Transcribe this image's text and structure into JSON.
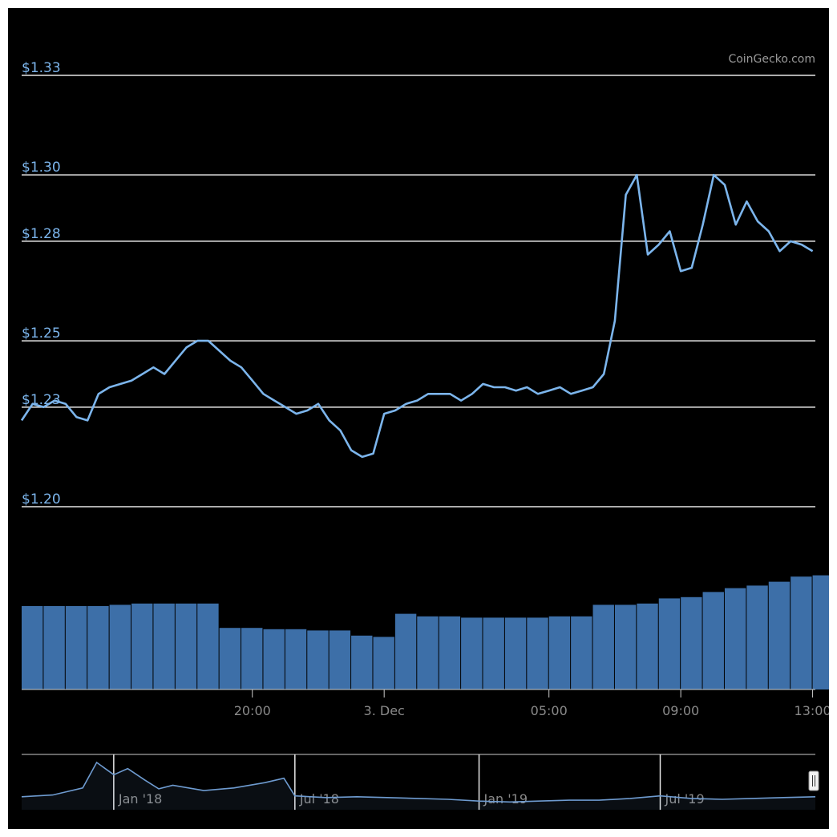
{
  "credit": "CoinGecko.com",
  "colors": {
    "background": "#000000",
    "line": "#7cb5ec",
    "bar": "#3d6fa8",
    "grid": "#e6e6e6",
    "tick_text": "#8a8a8a",
    "navigator_line": "#6e9bd0"
  },
  "chart_data": {
    "type": "line",
    "y_axis": {
      "ticks": [
        1.2,
        1.23,
        1.25,
        1.28,
        1.3,
        1.33
      ],
      "tick_labels": [
        "$1.20",
        "$1.23",
        "$1.25",
        "$1.28",
        "$1.30",
        "$1.33"
      ],
      "range": [
        1.2,
        1.33
      ],
      "gridlines": true
    },
    "x_axis": {
      "tick_labels": [
        "20:00",
        "3. Dec",
        "05:00",
        "09:00",
        "13:00"
      ],
      "tick_times": [
        "2019-12-02T20:00",
        "2019-12-03T00:00",
        "2019-12-03T05:00",
        "2019-12-03T09:00",
        "2019-12-03T13:00"
      ],
      "range": [
        "2019-12-02T13:00",
        "2019-12-03T13:05"
      ]
    },
    "price_series": {
      "times": [
        "2019-12-02T13:00",
        "2019-12-02T13:20",
        "2019-12-02T13:40",
        "2019-12-02T14:00",
        "2019-12-02T14:20",
        "2019-12-02T14:40",
        "2019-12-02T15:00",
        "2019-12-02T15:20",
        "2019-12-02T15:40",
        "2019-12-02T16:00",
        "2019-12-02T16:20",
        "2019-12-02T16:40",
        "2019-12-02T17:00",
        "2019-12-02T17:20",
        "2019-12-02T17:40",
        "2019-12-02T18:00",
        "2019-12-02T18:20",
        "2019-12-02T18:40",
        "2019-12-02T19:00",
        "2019-12-02T19:20",
        "2019-12-02T19:40",
        "2019-12-02T20:00",
        "2019-12-02T20:20",
        "2019-12-02T20:40",
        "2019-12-02T21:00",
        "2019-12-02T21:20",
        "2019-12-02T21:40",
        "2019-12-02T22:00",
        "2019-12-02T22:20",
        "2019-12-02T22:40",
        "2019-12-02T23:00",
        "2019-12-02T23:20",
        "2019-12-02T23:40",
        "2019-12-03T00:00",
        "2019-12-03T00:20",
        "2019-12-03T00:40",
        "2019-12-03T01:00",
        "2019-12-03T01:20",
        "2019-12-03T01:40",
        "2019-12-03T02:00",
        "2019-12-03T02:20",
        "2019-12-03T02:40",
        "2019-12-03T03:00",
        "2019-12-03T03:20",
        "2019-12-03T03:40",
        "2019-12-03T04:00",
        "2019-12-03T04:20",
        "2019-12-03T04:40",
        "2019-12-03T05:00",
        "2019-12-03T05:20",
        "2019-12-03T05:40",
        "2019-12-03T06:00",
        "2019-12-03T06:20",
        "2019-12-03T06:40",
        "2019-12-03T07:00",
        "2019-12-03T07:20",
        "2019-12-03T07:40",
        "2019-12-03T08:00",
        "2019-12-03T08:20",
        "2019-12-03T08:40",
        "2019-12-03T09:00",
        "2019-12-03T09:20",
        "2019-12-03T09:40",
        "2019-12-03T10:00",
        "2019-12-03T10:20",
        "2019-12-03T10:40",
        "2019-12-03T11:00",
        "2019-12-03T11:20",
        "2019-12-03T11:40",
        "2019-12-03T12:00",
        "2019-12-03T12:20",
        "2019-12-03T12:40",
        "2019-12-03T13:00"
      ],
      "values": [
        1.226,
        1.231,
        1.23,
        1.232,
        1.231,
        1.227,
        1.226,
        1.234,
        1.236,
        1.237,
        1.238,
        1.24,
        1.242,
        1.24,
        1.244,
        1.248,
        1.25,
        1.25,
        1.247,
        1.244,
        1.242,
        1.238,
        1.234,
        1.232,
        1.23,
        1.228,
        1.229,
        1.231,
        1.226,
        1.223,
        1.217,
        1.215,
        1.216,
        1.228,
        1.229,
        1.231,
        1.232,
        1.234,
        1.234,
        1.234,
        1.232,
        1.234,
        1.237,
        1.236,
        1.236,
        1.235,
        1.236,
        1.234,
        1.235,
        1.236,
        1.234,
        1.235,
        1.236,
        1.24,
        1.256,
        1.294,
        1.3,
        1.276,
        1.279,
        1.283,
        1.271,
        1.272,
        1.285,
        1.3,
        1.297,
        1.285,
        1.292,
        1.286,
        1.283,
        1.277,
        1.28,
        1.279,
        1.277
      ]
    },
    "volume_series": {
      "times": [
        "2019-12-02T13:00",
        "2019-12-02T13:40",
        "2019-12-02T14:20",
        "2019-12-02T15:00",
        "2019-12-02T15:40",
        "2019-12-02T16:20",
        "2019-12-02T17:00",
        "2019-12-02T17:40",
        "2019-12-02T18:20",
        "2019-12-02T19:00",
        "2019-12-02T19:40",
        "2019-12-02T20:20",
        "2019-12-02T21:00",
        "2019-12-02T21:40",
        "2019-12-02T22:20",
        "2019-12-02T23:00",
        "2019-12-02T23:40",
        "2019-12-03T00:20",
        "2019-12-03T01:00",
        "2019-12-03T01:40",
        "2019-12-03T02:20",
        "2019-12-03T03:00",
        "2019-12-03T03:40",
        "2019-12-03T04:20",
        "2019-12-03T05:00",
        "2019-12-03T05:40",
        "2019-12-03T06:20",
        "2019-12-03T07:00",
        "2019-12-03T07:40",
        "2019-12-03T08:20",
        "2019-12-03T09:00",
        "2019-12-03T09:40",
        "2019-12-03T10:20",
        "2019-12-03T11:00",
        "2019-12-03T11:40",
        "2019-12-03T12:20",
        "2019-12-03T13:00"
      ],
      "values": [
        0.65,
        0.65,
        0.65,
        0.65,
        0.66,
        0.67,
        0.67,
        0.67,
        0.67,
        0.48,
        0.48,
        0.47,
        0.47,
        0.46,
        0.46,
        0.42,
        0.41,
        0.59,
        0.57,
        0.57,
        0.56,
        0.56,
        0.56,
        0.56,
        0.57,
        0.57,
        0.66,
        0.66,
        0.67,
        0.71,
        0.72,
        0.76,
        0.79,
        0.81,
        0.84,
        0.88,
        0.89
      ],
      "unit": "relative"
    },
    "navigator": {
      "tick_labels": [
        "Jan '18",
        "Jul '18",
        "Jan '19",
        "Jul '19"
      ],
      "tick_times": [
        "2018-01-01",
        "2018-07-01",
        "2019-01-01",
        "2019-07-01"
      ],
      "range": [
        "2017-10-01",
        "2019-12-03"
      ],
      "times": [
        "2017-10-01",
        "2017-11-01",
        "2017-12-01",
        "2017-12-15",
        "2018-01-01",
        "2018-01-15",
        "2018-02-01",
        "2018-02-15",
        "2018-03-01",
        "2018-04-01",
        "2018-05-01",
        "2018-06-01",
        "2018-06-20",
        "2018-07-01",
        "2018-08-01",
        "2018-09-01",
        "2018-10-01",
        "2018-11-01",
        "2018-12-01",
        "2019-01-01",
        "2019-02-01",
        "2019-03-01",
        "2019-04-01",
        "2019-05-01",
        "2019-06-01",
        "2019-07-01",
        "2019-08-01",
        "2019-09-01",
        "2019-10-01",
        "2019-11-01",
        "2019-12-03"
      ],
      "values": [
        1.3,
        1.5,
        2.3,
        5.2,
        3.8,
        4.5,
        3.2,
        2.2,
        2.6,
        2.0,
        2.3,
        2.9,
        3.4,
        1.4,
        1.2,
        1.3,
        1.2,
        1.1,
        1.0,
        0.8,
        0.7,
        0.8,
        0.9,
        0.9,
        1.1,
        1.4,
        1.1,
        1.0,
        1.1,
        1.2,
        1.3
      ]
    }
  }
}
